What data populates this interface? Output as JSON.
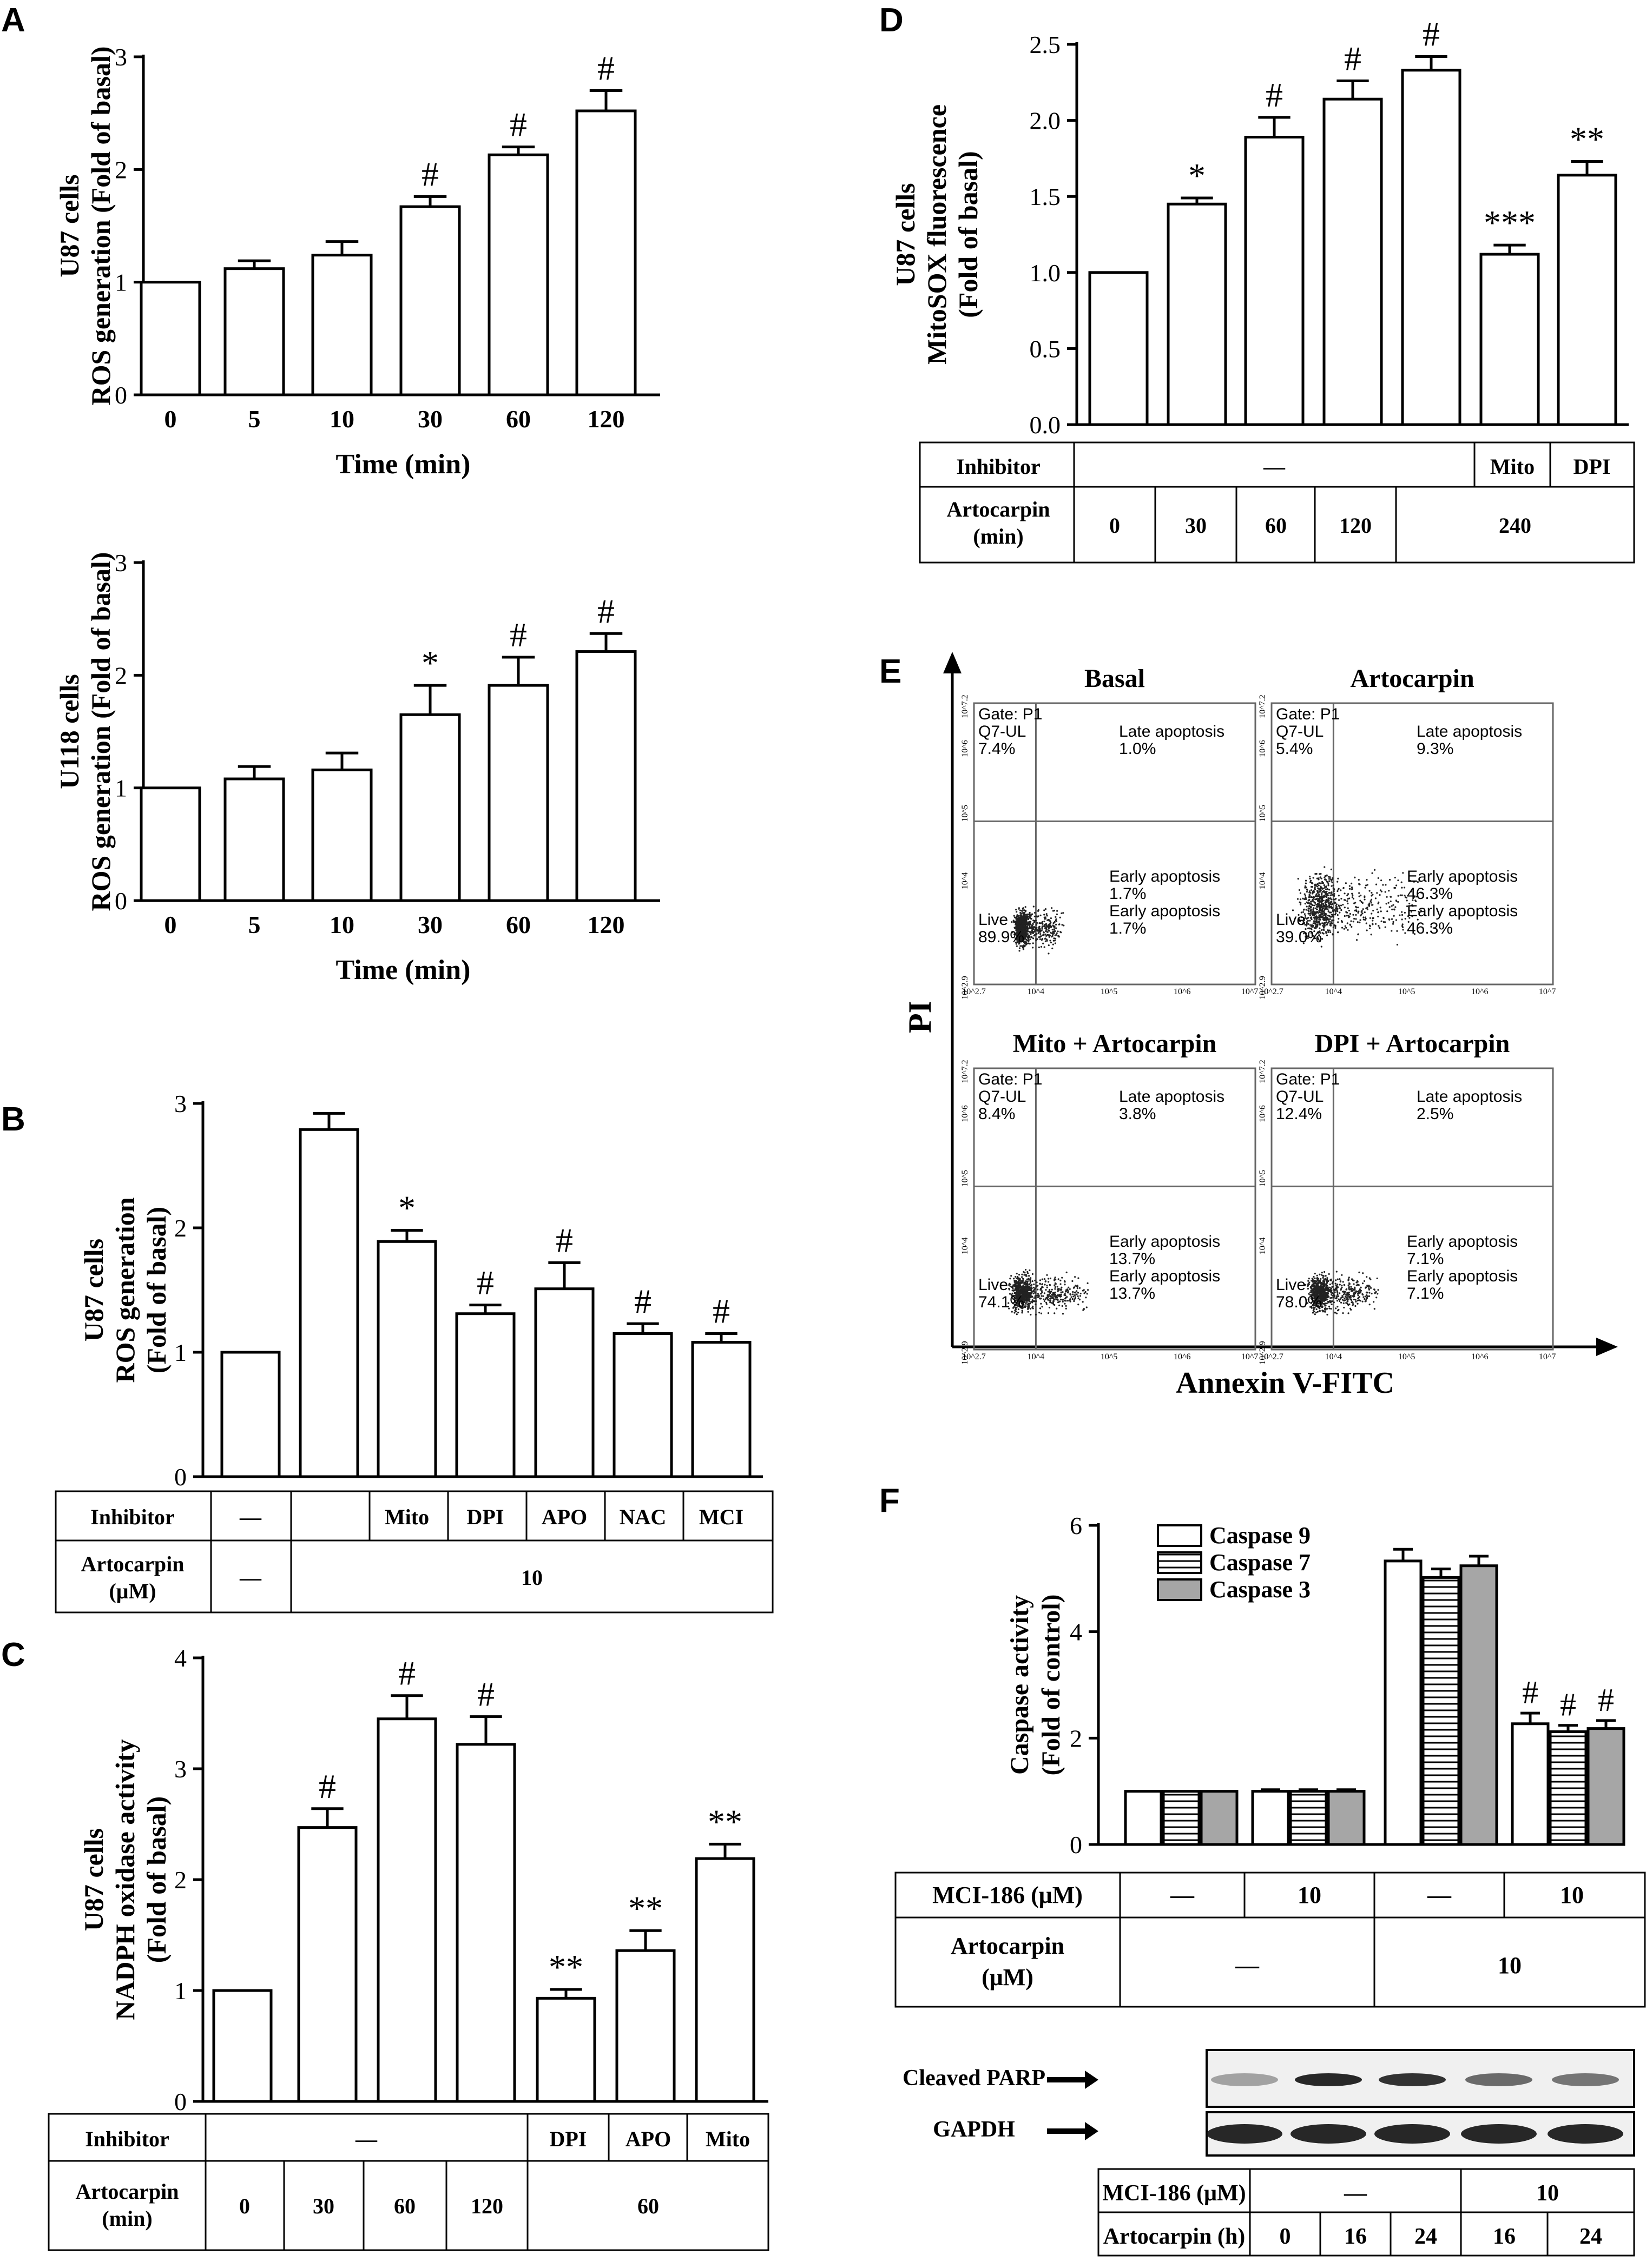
{
  "panels": {
    "A": {
      "letter": "A",
      "charts": [
        {
          "ylabel_line1": "U87 cells",
          "ylabel_line2": "ROS generation (Fold of basal)",
          "xlabel": "Time (min)",
          "yticks": [
            "0",
            "1",
            "2",
            "3"
          ],
          "ylim": [
            0,
            3
          ],
          "categories": [
            "0",
            "5",
            "10",
            "30",
            "60",
            "120"
          ],
          "values": [
            1.0,
            1.12,
            1.24,
            1.67,
            2.13,
            2.52
          ],
          "errors": [
            0,
            0.07,
            0.12,
            0.09,
            0.07,
            0.18
          ],
          "marks": [
            "",
            "",
            "",
            "#",
            "#",
            "#"
          ]
        },
        {
          "ylabel_line1": "U118 cells",
          "ylabel_line2": "ROS generation (Fold of basal)",
          "xlabel": "Time (min)",
          "yticks": [
            "0",
            "1",
            "2",
            "3"
          ],
          "ylim": [
            0,
            3
          ],
          "categories": [
            "0",
            "5",
            "10",
            "30",
            "60",
            "120"
          ],
          "values": [
            1.0,
            1.08,
            1.16,
            1.65,
            1.91,
            2.21
          ],
          "errors": [
            0,
            0.11,
            0.15,
            0.26,
            0.25,
            0.16
          ],
          "marks": [
            "",
            "",
            "",
            "*",
            "#",
            "#"
          ]
        }
      ]
    },
    "B": {
      "letter": "B",
      "ylabel_line1": "U87 cells",
      "ylabel_line2": "ROS generation",
      "ylabel_line3": "(Fold of basal)",
      "yticks": [
        "0",
        "1",
        "2",
        "3"
      ],
      "ylim": [
        0,
        3
      ],
      "values": [
        1.0,
        2.79,
        1.89,
        1.31,
        1.51,
        1.15,
        1.08
      ],
      "errors": [
        0,
        0.13,
        0.09,
        0.07,
        0.21,
        0.08,
        0.07
      ],
      "marks": [
        "",
        "",
        "*",
        "#",
        "#",
        "#",
        "#"
      ],
      "table": {
        "row1_label": "Inhibitor",
        "row1": [
          "—",
          "Mito",
          "DPI",
          "APO",
          "NAC",
          "MCI"
        ],
        "row2_label_a": "Artocarpin",
        "row2_label_b": "(μM)",
        "row2": [
          "—",
          "10"
        ]
      }
    },
    "C": {
      "letter": "C",
      "ylabel_line1": "U87 cells",
      "ylabel_line2": "NADPH oxidase activity",
      "ylabel_line3": "(Fold of basal)",
      "yticks": [
        "0",
        "1",
        "2",
        "3",
        "4"
      ],
      "ylim": [
        0,
        4
      ],
      "values": [
        1.0,
        2.47,
        3.45,
        3.22,
        0.93,
        1.36,
        2.19
      ],
      "errors": [
        0,
        0.17,
        0.21,
        0.25,
        0.08,
        0.18,
        0.13
      ],
      "marks": [
        "",
        "#",
        "#",
        "#",
        "**",
        "**",
        "**"
      ],
      "table": {
        "row1_label": "Inhibitor",
        "row1": [
          "—",
          "DPI",
          "APO",
          "Mito"
        ],
        "row2_label_a": "Artocarpin",
        "row2_label_b": "(min)",
        "row2": [
          "0",
          "30",
          "60",
          "120",
          "60"
        ]
      }
    },
    "D": {
      "letter": "D",
      "ylabel_line1": "U87 cells",
      "ylabel_line2": "MitoSOX fluorescence",
      "ylabel_line3": "(Fold of basal)",
      "yticks": [
        "0.0",
        "0.5",
        "1.0",
        "1.5",
        "2.0",
        "2.5"
      ],
      "ylim": [
        0,
        2.5
      ],
      "values": [
        1.0,
        1.45,
        1.89,
        2.14,
        2.33,
        1.12,
        1.64
      ],
      "errors": [
        0,
        0.04,
        0.13,
        0.12,
        0.09,
        0.06,
        0.09
      ],
      "marks": [
        "",
        "*",
        "#",
        "#",
        "#",
        "***",
        "**"
      ],
      "table": {
        "row1_label": "Inhibitor",
        "row1": [
          "—",
          "Mito",
          "DPI"
        ],
        "row2_label_a": "Artocarpin",
        "row2_label_b": "(min)",
        "row2": [
          "0",
          "30",
          "60",
          "120",
          "240"
        ]
      }
    },
    "E": {
      "letter": "E",
      "yaxis_label": "PI",
      "xaxis_label": "Annexin V-FITC",
      "plots": [
        {
          "title": "Basal",
          "gate": "Gate: P1",
          "q_ul": "Q7-UL",
          "ul_pct": "7.4%",
          "late": "Late apoptosis",
          "late_pct": "1.0%",
          "early": "Early apoptosis",
          "early_pct": "1.7%",
          "early_ghost": "Early apoptosis",
          "early_ghost_pct": "1.7%",
          "live": "Live",
          "live_pct": "89.9%"
        },
        {
          "title": "Artocarpin",
          "gate": "Gate: P1",
          "q_ul": "Q7-UL",
          "ul_pct": "5.4%",
          "late": "Late apoptosis",
          "late_pct": "9.3%",
          "early": "Early apoptosis",
          "early_pct": "46.3%",
          "early_ghost": "Early apoptosis",
          "early_ghost_pct": "46.3%",
          "live": "Live",
          "live_pct": "39.0%"
        },
        {
          "title": "Mito + Artocarpin",
          "gate": "Gate: P1",
          "q_ul": "Q7-UL",
          "ul_pct": "8.4%",
          "late": "Late apoptosis",
          "late_pct": "3.8%",
          "early": "Early apoptosis",
          "early_pct": "13.7%",
          "early_ghost": "Early apoptosis",
          "early_ghost_pct": "13.7%",
          "live": "Live",
          "live_pct": "74.1%"
        },
        {
          "title": "DPI + Artocarpin",
          "gate": "Gate: P1",
          "q_ul": "Q7-UL",
          "ul_pct": "12.4%",
          "late": "Late apoptosis",
          "late_pct": "2.5%",
          "early": "Early apoptosis",
          "early_pct": "7.1%",
          "early_ghost": "Early apoptosis",
          "early_ghost_pct": "7.1%",
          "live": "Live",
          "live_pct": "78.0%"
        }
      ],
      "axis_ticks_x": [
        "10^2.7",
        "10^4",
        "10^5",
        "10^6",
        "10^7"
      ],
      "axis_ticks_y": [
        "10^2.9",
        "10^4",
        "10^5",
        "10^6",
        "10^7.2"
      ]
    },
    "F": {
      "letter": "F",
      "ylabel_line1": "Caspase activity",
      "ylabel_line2": "(Fold of control)",
      "yticks": [
        "0",
        "2",
        "4",
        "6"
      ],
      "ylim": [
        0,
        6
      ],
      "legend": [
        "Caspase 9",
        "Caspase 7",
        "Caspase 3"
      ],
      "groups": [
        {
          "values": [
            1.0,
            1.0,
            1.0
          ],
          "errors": [
            0,
            0,
            0
          ],
          "marks": [
            "",
            "",
            ""
          ]
        },
        {
          "values": [
            1.0,
            1.0,
            1.0
          ],
          "errors": [
            0.03,
            0.03,
            0.03
          ],
          "marks": [
            "",
            "",
            ""
          ]
        },
        {
          "values": [
            5.33,
            5.02,
            5.24
          ],
          "errors": [
            0.22,
            0.16,
            0.18
          ],
          "marks": [
            "",
            "",
            ""
          ]
        },
        {
          "values": [
            2.27,
            2.12,
            2.18
          ],
          "errors": [
            0.2,
            0.12,
            0.15
          ],
          "marks": [
            "#",
            "#",
            "#"
          ]
        }
      ],
      "table": {
        "row1_label": "MCI-186 (μM)",
        "row1": [
          "—",
          "10",
          "—",
          "10"
        ],
        "row2_label_a": "Artocarpin",
        "row2_label_b": "(μM)",
        "row2": [
          "—",
          "10"
        ]
      },
      "blot": {
        "row1": "Cleaved PARP",
        "row2": "GAPDH",
        "table_row1_label": "MCI-186 (μM)",
        "table_row1": [
          "—",
          "10"
        ],
        "table_row2_label": "Artocarpin (h)",
        "table_row2": [
          "0",
          "16",
          "24",
          "16",
          "24"
        ]
      }
    }
  },
  "chart_data": [
    {
      "type": "bar",
      "panel": "A (U87)",
      "categories": [
        "0",
        "5",
        "10",
        "30",
        "60",
        "120"
      ],
      "values": [
        1.0,
        1.12,
        1.24,
        1.67,
        2.13,
        2.52
      ],
      "xlabel": "Time (min)",
      "ylabel": "ROS generation (Fold of basal)",
      "ylim": [
        0,
        3
      ]
    },
    {
      "type": "bar",
      "panel": "A (U118)",
      "categories": [
        "0",
        "5",
        "10",
        "30",
        "60",
        "120"
      ],
      "values": [
        1.0,
        1.08,
        1.16,
        1.65,
        1.91,
        2.21
      ],
      "xlabel": "Time (min)",
      "ylabel": "ROS generation (Fold of basal)",
      "ylim": [
        0,
        3
      ]
    },
    {
      "type": "bar",
      "panel": "B",
      "categories": [
        "—/—",
        "—/10",
        "Mito/10",
        "DPI/10",
        "APO/10",
        "NAC/10",
        "MCI/10"
      ],
      "values": [
        1.0,
        2.79,
        1.89,
        1.31,
        1.51,
        1.15,
        1.08
      ],
      "ylabel": "ROS generation (Fold of basal)",
      "ylim": [
        0,
        3
      ]
    },
    {
      "type": "bar",
      "panel": "C",
      "categories": [
        "0",
        "30",
        "60",
        "120",
        "DPI 60",
        "APO 60",
        "Mito 60"
      ],
      "values": [
        1.0,
        2.47,
        3.45,
        3.22,
        0.93,
        1.36,
        2.19
      ],
      "ylabel": "NADPH oxidase activity (Fold of basal)",
      "ylim": [
        0,
        4
      ]
    },
    {
      "type": "bar",
      "panel": "D",
      "categories": [
        "0",
        "30",
        "60",
        "120",
        "240",
        "Mito 240",
        "DPI 240"
      ],
      "values": [
        1.0,
        1.45,
        1.89,
        2.14,
        2.33,
        1.12,
        1.64
      ],
      "ylabel": "MitoSOX fluorescence (Fold of basal)",
      "ylim": [
        0,
        2.5
      ]
    },
    {
      "type": "bar",
      "panel": "F",
      "categories": [
        "—/—",
        "10/—",
        "—/10",
        "10/10"
      ],
      "series": [
        {
          "name": "Caspase 9",
          "values": [
            1.0,
            1.0,
            5.33,
            2.27
          ]
        },
        {
          "name": "Caspase 7",
          "values": [
            1.0,
            1.0,
            5.02,
            2.12
          ]
        },
        {
          "name": "Caspase 3",
          "values": [
            1.0,
            1.0,
            5.24,
            2.18
          ]
        }
      ],
      "ylabel": "Caspase activity (Fold of control)",
      "ylim": [
        0,
        6
      ]
    }
  ]
}
